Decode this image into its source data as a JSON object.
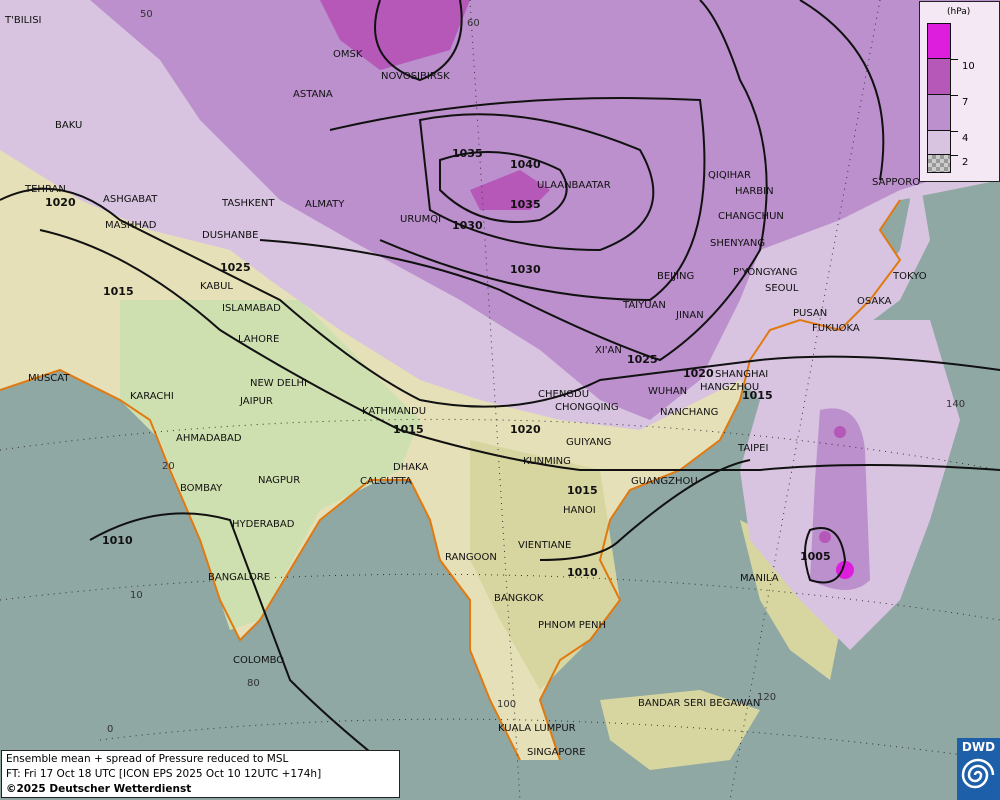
{
  "map": {
    "title": "Ensemble mean + spread of Pressure reduced to MSL",
    "forecast_time": "FT: Fri 17 Oct 18 UTC [ICON EPS 2025 Oct 10 12UTC +174h]",
    "copyright": "©2025 Deutscher Wetterdienst",
    "logo": "DWD",
    "colors": {
      "ocean": "#8fa8a4",
      "spread_2_4": "#d8c4e0",
      "spread_4_7": "#bb90cc",
      "spread_7_10": "#b558b8",
      "spread_10_plus": "#dd1fdd",
      "isobar": "#111111",
      "coastline": "#e07a10"
    },
    "legend": {
      "unit": "(hPa)",
      "ticks": [
        "10",
        "7",
        "4",
        "2"
      ]
    },
    "cities": [
      "OMSK",
      "NOVOSIBIRSK",
      "ASTANA",
      "T'BILISI",
      "BAKU",
      "TEHRAN",
      "ASHGABAT",
      "MASHHAD",
      "TASHKENT",
      "ALMATY",
      "DUSHANBE",
      "URUMQI",
      "KABUL",
      "ISLAMABAD",
      "LAHORE",
      "NEW DELHI",
      "JAIPUR",
      "KARACHI",
      "MUSCAT",
      "AHMADABAD",
      "KATHMANDU",
      "DHAKA",
      "CALCUTTA",
      "BOMBAY",
      "NAGPUR",
      "HYDERABAD",
      "BANGALORE",
      "COLOMBO",
      "RANGOON",
      "HANOI",
      "VIENTIANE",
      "BANGKOK",
      "PHNOM PENH",
      "KUALA LUMPUR",
      "SINGAPORE",
      "BANDAR SERI BEGAWAN",
      "MANILA",
      "TAIPEI",
      "GUANGZHOU",
      "KUNMING",
      "GUIYANG",
      "CHENGDU",
      "CHONGQING",
      "WUHAN",
      "NANCHANG",
      "XI'AN",
      "SHANGHAI",
      "HANGZHOU",
      "TAIYUAN",
      "JINAN",
      "BEIJING",
      "SHENYANG",
      "CHANGCHUN",
      "HARBIN",
      "QIQIHAR",
      "P'YONGYANG",
      "SEOUL",
      "PUSAN",
      "FUKUOKA",
      "OSAKA",
      "TOKYO",
      "SAPPORO",
      "ULAANBAATAR"
    ],
    "isobar_labels": [
      "1035",
      "1040",
      "1035",
      "1030",
      "1030",
      "1025",
      "1020",
      "1015",
      "1025",
      "1020",
      "1015",
      "1015",
      "1020",
      "1015",
      "1010",
      "1010",
      "1005"
    ],
    "graticule_labels": [
      "50",
      "60",
      "20",
      "10",
      "80",
      "0",
      "100",
      "120",
      "140"
    ]
  }
}
